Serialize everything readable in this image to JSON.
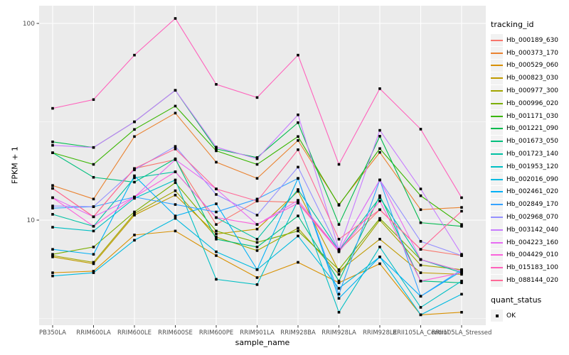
{
  "chart_data": {
    "type": "line",
    "title": "",
    "xlabel": "sample_name",
    "ylabel": "FPKM + 1",
    "yscale": "log10",
    "yticks": [
      10,
      100
    ],
    "ylim": [
      2.9,
      123
    ],
    "grid": true,
    "panel_bg": "#EBEBEB",
    "grid_color": "#FFFFFF",
    "tick_label_color": "#4D4D4D",
    "point_shape": "black-square",
    "legend_position": "right",
    "categories": [
      "PB350LA",
      "RRIM600LA",
      "RRIM600LE",
      "RRIM600SE",
      "RRIM600PE",
      "RRIM901LA",
      "RRIM928BA",
      "RRIM928LA",
      "RRIM928LE",
      "RRII105LA_Control",
      "RRII105LA_Stressed"
    ],
    "series": [
      {
        "name": "Hb_000189_630",
        "color": "#F8766D",
        "values": [
          14.5,
          10.4,
          18.3,
          20.3,
          9.5,
          12.5,
          12.3,
          7.0,
          11.3,
          7.1,
          6.6
        ]
      },
      {
        "name": "Hb_000373_170",
        "color": "#EA8331",
        "values": [
          15.0,
          12.8,
          26.6,
          35.0,
          19.7,
          16.3,
          25.4,
          12.0,
          22.1,
          11.3,
          11.6
        ]
      },
      {
        "name": "Hb_000529_060",
        "color": "#D89000",
        "values": [
          5.4,
          5.5,
          8.4,
          8.8,
          6.6,
          5.1,
          6.1,
          4.8,
          6.0,
          3.3,
          3.4
        ]
      },
      {
        "name": "Hb_000823_030",
        "color": "#C09B00",
        "values": [
          6.5,
          6.0,
          10.6,
          13.4,
          8.5,
          9.0,
          14.0,
          5.5,
          8.0,
          5.4,
          5.3
        ]
      },
      {
        "name": "Hb_000977_300",
        "color": "#A3A500",
        "values": [
          6.6,
          6.1,
          10.8,
          14.1,
          8.2,
          7.0,
          9.1,
          5.3,
          10.0,
          5.9,
          5.6
        ]
      },
      {
        "name": "Hb_000996_020",
        "color": "#7CAE00",
        "values": [
          6.7,
          7.3,
          11.0,
          15.5,
          8.8,
          7.7,
          8.8,
          5.6,
          10.2,
          6.3,
          5.5
        ]
      },
      {
        "name": "Hb_001171_030",
        "color": "#39B600",
        "values": [
          22.0,
          19.2,
          28.9,
          38.0,
          22.5,
          19.2,
          26.6,
          11.9,
          23.1,
          13.3,
          9.5
        ]
      },
      {
        "name": "Hb_001221_090",
        "color": "#00BB4E",
        "values": [
          25.0,
          23.4,
          31.6,
          45.7,
          23.0,
          20.8,
          31.3,
          9.5,
          26.7,
          9.7,
          9.3
        ]
      },
      {
        "name": "Hb_001673_050",
        "color": "#00BF7D",
        "values": [
          22.0,
          16.5,
          15.6,
          20.5,
          8.0,
          7.3,
          10.5,
          4.9,
          13.3,
          4.9,
          4.8
        ]
      },
      {
        "name": "Hb_001723_140",
        "color": "#00C1A3",
        "values": [
          10.7,
          9.3,
          16.4,
          17.6,
          10.3,
          8.0,
          14.3,
          7.0,
          13.0,
          6.3,
          5.4
        ]
      },
      {
        "name": "Hb_001953_120",
        "color": "#00BFC4",
        "values": [
          9.2,
          8.8,
          12.9,
          16.0,
          5.0,
          4.7,
          12.6,
          3.4,
          7.3,
          3.6,
          4.9
        ]
      },
      {
        "name": "Hb_002016_090",
        "color": "#00BAE0",
        "values": [
          5.2,
          5.4,
          7.9,
          10.2,
          6.9,
          5.6,
          8.3,
          4.5,
          6.5,
          3.3,
          4.2
        ]
      },
      {
        "name": "Hb_002461_020",
        "color": "#00B0F6",
        "values": [
          7.1,
          6.7,
          16.8,
          10.5,
          12.1,
          5.6,
          16.3,
          4.0,
          6.5,
          4.1,
          5.5
        ]
      },
      {
        "name": "Hb_002849_170",
        "color": "#35A2FF",
        "values": [
          11.5,
          11.7,
          13.1,
          12.0,
          11.0,
          12.8,
          16.3,
          4.2,
          16.0,
          4.1,
          5.6
        ]
      },
      {
        "name": "Hb_002968_070",
        "color": "#9590FF",
        "values": [
          11.8,
          11.7,
          18.0,
          23.7,
          13.5,
          10.6,
          18.6,
          7.0,
          16.0,
          7.8,
          6.6
        ]
      },
      {
        "name": "Hb_003142_040",
        "color": "#C77CFF",
        "values": [
          24.0,
          23.4,
          31.6,
          45.7,
          23.5,
          20.5,
          34.3,
          7.1,
          28.6,
          14.4,
          6.7
        ]
      },
      {
        "name": "Hb_004223_160",
        "color": "#E76BF3",
        "values": [
          13.0,
          10.4,
          13.1,
          20.3,
          14.4,
          9.5,
          12.6,
          7.0,
          16.0,
          6.3,
          5.5
        ]
      },
      {
        "name": "Hb_004429_010",
        "color": "#FA62DB",
        "values": [
          13.0,
          9.3,
          13.1,
          17.6,
          10.3,
          9.5,
          12.2,
          6.9,
          12.5,
          4.9,
          5.4
        ]
      },
      {
        "name": "Hb_015183_100",
        "color": "#FF62BC",
        "values": [
          37.0,
          41.0,
          69.0,
          106.0,
          49.0,
          42.0,
          69.0,
          19.2,
          46.6,
          29.0,
          13.0
        ]
      },
      {
        "name": "Hb_088144_020",
        "color": "#FF6A98",
        "values": [
          14.5,
          10.4,
          18.3,
          23.0,
          14.4,
          12.5,
          22.8,
          8.0,
          11.3,
          7.1,
          11.1
        ]
      }
    ]
  },
  "legend": {
    "tracking_title": "tracking_id",
    "quant_title": "quant_status",
    "quant_ok_label": "OK"
  }
}
